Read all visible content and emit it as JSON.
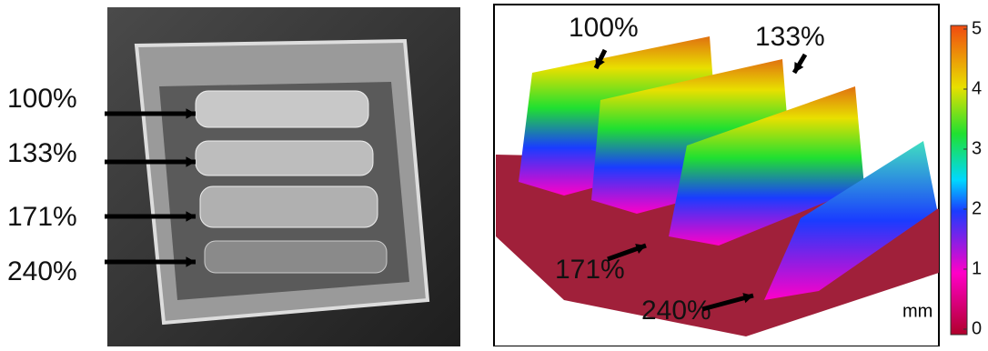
{
  "photo": {
    "labels": [
      "100%",
      "133%",
      "171%",
      "240%"
    ]
  },
  "surface_plot": {
    "labels": [
      "100%",
      "133%",
      "171%",
      "240%"
    ],
    "colorbar": {
      "ticks": [
        0,
        1,
        2,
        3,
        4,
        5
      ],
      "unit": "mm"
    }
  }
}
